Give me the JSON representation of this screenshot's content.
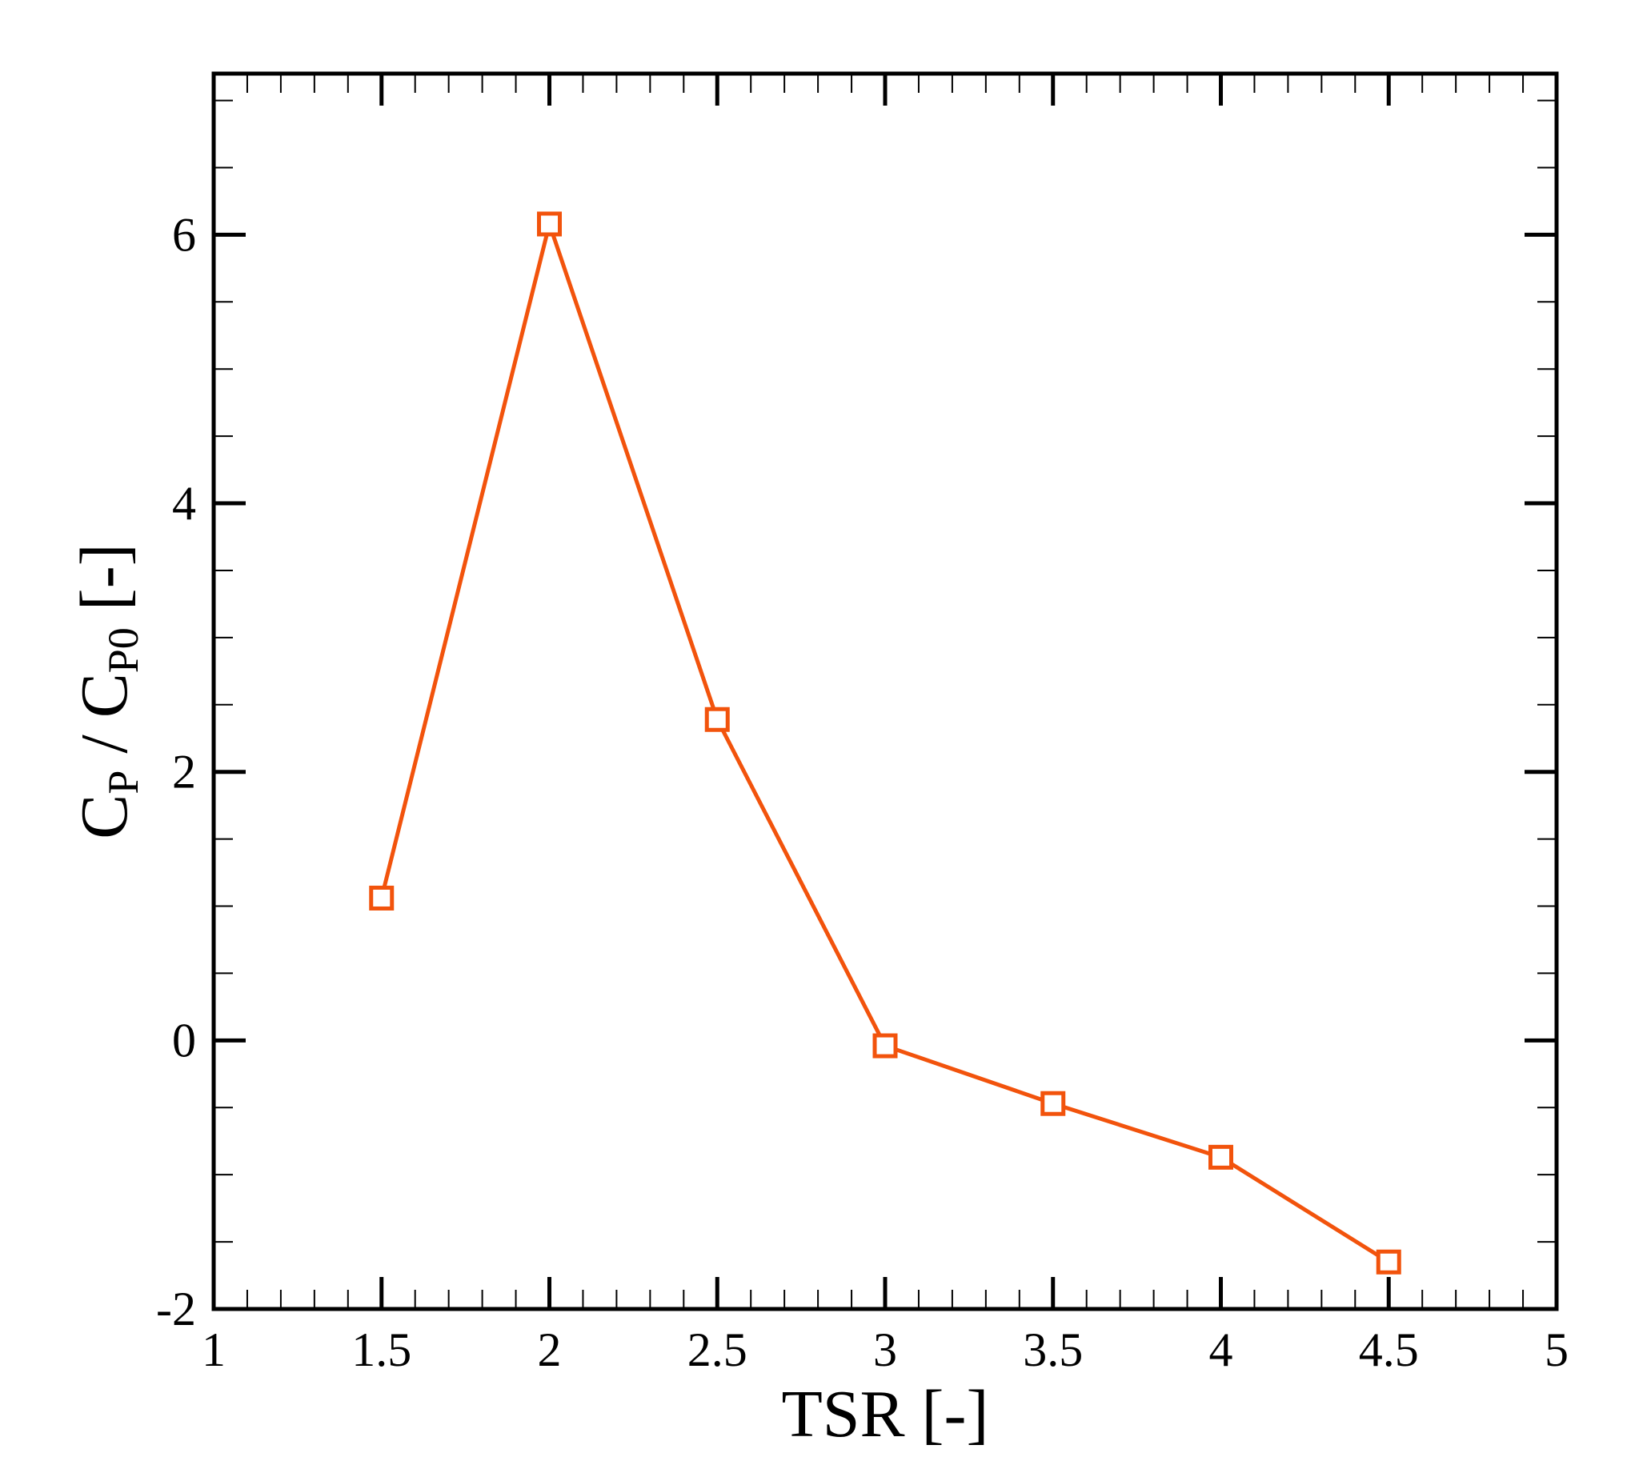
{
  "chart_data": {
    "type": "line",
    "title": "",
    "xlabel": "TSR [-]",
    "ylabel": {
      "parts": [
        "C",
        "P",
        " / C",
        "P0",
        " [-]"
      ]
    },
    "xlim": [
      1,
      5
    ],
    "ylim": [
      -2,
      7.2
    ],
    "x_ticks": [
      1,
      1.5,
      2,
      2.5,
      3,
      3.5,
      4,
      4.5,
      5
    ],
    "x_tick_labels": [
      "1",
      "1.5",
      "2",
      "2.5",
      "3",
      "3.5",
      "4",
      "4.5",
      "5"
    ],
    "y_ticks": [
      -2,
      0,
      2,
      4,
      6
    ],
    "y_tick_labels": [
      "-2",
      "0",
      "2",
      "4",
      "6"
    ],
    "x_minor_step": 0.1,
    "y_minor_step": 0.5,
    "grid": false,
    "legend": "none",
    "series": [
      {
        "color": "#f2530c",
        "marker": "square",
        "x": [
          1.5,
          2,
          2.5,
          3,
          3.5,
          4,
          4.5
        ],
        "y": [
          1.06,
          6.08,
          2.39,
          -0.04,
          -0.47,
          -0.87,
          -1.65
        ]
      }
    ]
  }
}
